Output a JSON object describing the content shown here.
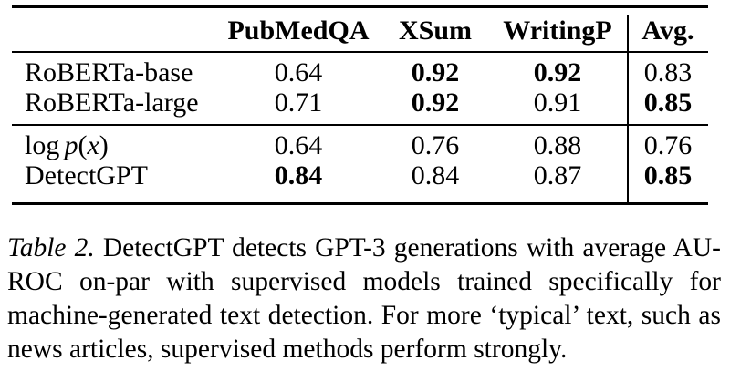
{
  "table": {
    "columns": [
      "",
      "PubMedQA",
      "XSum",
      "WritingP",
      "Avg."
    ],
    "groups": [
      {
        "rows": [
          {
            "label": "RoBERTa-base",
            "values": [
              "0.64",
              "0.92",
              "0.92",
              "0.83"
            ],
            "bold": [
              false,
              true,
              true,
              false
            ]
          },
          {
            "label": "RoBERTa-large",
            "values": [
              "0.71",
              "0.92",
              "0.91",
              "0.85"
            ],
            "bold": [
              false,
              true,
              false,
              true
            ]
          }
        ]
      },
      {
        "rows": [
          {
            "label_math": {
              "fn": "log",
              "var1": "p",
              "open": "(",
              "var2": "x",
              "close": ")"
            },
            "values": [
              "0.64",
              "0.76",
              "0.88",
              "0.76"
            ],
            "bold": [
              false,
              false,
              false,
              false
            ]
          },
          {
            "label": "DetectGPT",
            "values": [
              "0.84",
              "0.84",
              "0.87",
              "0.85"
            ],
            "bold": [
              true,
              false,
              false,
              true
            ]
          }
        ]
      }
    ]
  },
  "caption": {
    "title": "Table 2.",
    "line1_rest": " DetectGPT detects GPT-3 generations with average AU-",
    "line2": "ROC on-par with supervised models trained specifically for",
    "line3": "machine-generated text detection. For more ‘typical’ text, such as",
    "line4": "news articles, supervised methods perform strongly."
  }
}
